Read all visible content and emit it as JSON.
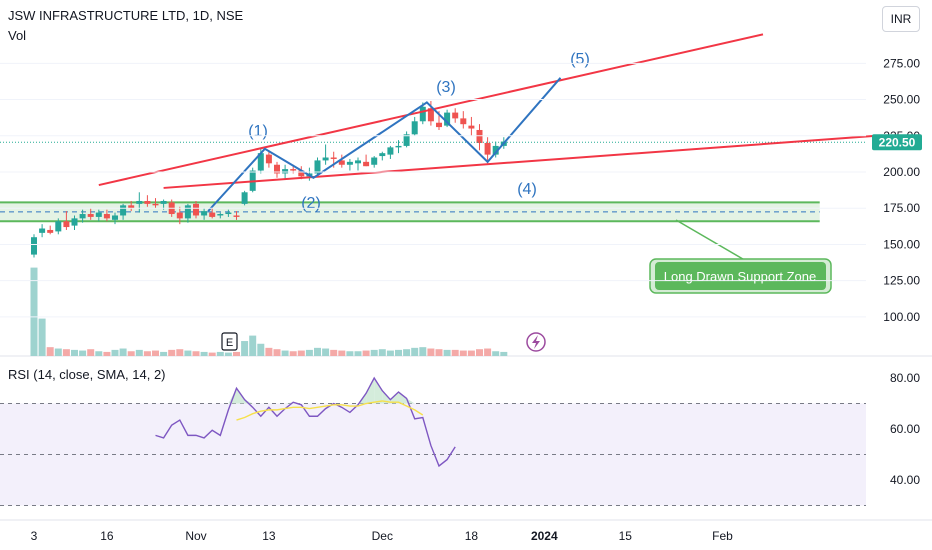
{
  "header": {
    "title": "JSW INFRASTRUCTURE LTD, 1D, NSE",
    "volume_label": "Vol",
    "currency_button": "INR"
  },
  "price": {
    "last": "220.50",
    "last_value": 220.5,
    "tag_color": "#22ab94"
  },
  "colors": {
    "up": "#26a69a",
    "down": "#ef5350",
    "vol_up": "#9ed3cf",
    "vol_down": "#f4a9a7",
    "trend": "#f23645",
    "wave": "#2f74c0",
    "zone": "#5cb85c",
    "rsi": "#7e57c2",
    "rsi_ma": "#f6e04b"
  },
  "chart_data": [
    {
      "type": "candlestick",
      "title": "JSW INFRASTRUCTURE LTD, 1D, NSE",
      "ylim": [
        80,
        300
      ],
      "y_ticks": [
        100,
        125,
        150,
        175,
        200,
        225,
        250,
        275
      ],
      "y_tick_labels": [
        "100.00",
        "125.00",
        "150.00",
        "175.00",
        "200.00",
        "225.00",
        "250.00",
        "275.00"
      ],
      "x_ticks": [
        {
          "index": 0,
          "label": "3"
        },
        {
          "index": 9,
          "label": "16"
        },
        {
          "index": 20,
          "label": "Nov"
        },
        {
          "index": 29,
          "label": "13"
        },
        {
          "index": 43,
          "label": "Dec"
        },
        {
          "index": 54,
          "label": "18"
        },
        {
          "index": 63,
          "label": "2024"
        },
        {
          "index": 73,
          "label": "15"
        },
        {
          "index": 85,
          "label": "Feb"
        }
      ],
      "candles": [
        [
          143,
          157,
          141,
          155
        ],
        [
          158,
          164,
          155,
          161
        ],
        [
          160,
          163,
          157,
          158
        ],
        [
          159,
          168,
          157,
          166
        ],
        [
          166,
          173,
          160,
          162
        ],
        [
          163,
          170,
          160,
          168
        ],
        [
          168,
          174,
          165,
          171
        ],
        [
          171,
          175,
          167,
          169
        ],
        [
          169,
          174,
          166,
          172
        ],
        [
          171,
          174,
          166,
          168
        ],
        [
          167,
          172,
          164,
          170
        ],
        [
          170,
          178,
          167,
          177
        ],
        [
          177,
          180,
          173,
          175
        ],
        [
          178,
          186,
          172,
          180
        ],
        [
          180,
          184,
          176,
          178
        ],
        [
          178,
          182,
          175,
          177
        ],
        [
          178,
          181,
          174,
          180
        ],
        [
          179,
          181,
          169,
          171
        ],
        [
          172,
          176,
          164,
          168
        ],
        [
          168,
          178,
          165,
          177
        ],
        [
          178,
          180,
          168,
          170
        ],
        [
          170,
          175,
          167,
          173
        ],
        [
          172,
          175,
          168,
          169
        ],
        [
          170,
          172,
          168,
          171
        ],
        [
          171,
          174,
          169,
          172
        ],
        [
          170,
          173,
          167,
          169
        ],
        [
          178,
          187,
          177,
          186
        ],
        [
          187,
          203,
          186,
          201
        ],
        [
          201,
          216,
          199,
          213
        ],
        [
          212,
          215,
          203,
          206
        ],
        [
          205,
          207,
          196,
          199
        ],
        [
          199,
          205,
          195,
          202
        ],
        [
          202,
          205,
          199,
          201
        ],
        [
          201,
          204,
          195,
          197
        ],
        [
          197,
          203,
          194,
          199
        ],
        [
          199,
          210,
          197,
          208
        ],
        [
          208,
          219,
          205,
          210
        ],
        [
          210,
          214,
          203,
          209
        ],
        [
          208,
          212,
          203,
          205
        ],
        [
          205,
          209,
          201,
          207
        ],
        [
          206,
          210,
          201,
          208
        ],
        [
          207,
          212,
          204,
          204
        ],
        [
          205,
          211,
          203,
          210
        ],
        [
          211,
          214,
          208,
          213
        ],
        [
          212,
          218,
          209,
          217
        ],
        [
          217,
          222,
          213,
          218
        ],
        [
          218,
          228,
          217,
          226
        ],
        [
          226,
          238,
          225,
          235
        ],
        [
          235,
          248,
          233,
          245
        ],
        [
          244,
          249,
          232,
          235
        ],
        [
          234,
          242,
          229,
          231
        ],
        [
          232,
          243,
          231,
          241
        ],
        [
          241,
          244,
          234,
          237
        ],
        [
          237,
          242,
          230,
          233
        ],
        [
          232,
          238,
          225,
          230
        ],
        [
          229,
          233,
          215,
          220
        ],
        [
          220,
          224,
          206,
          212
        ],
        [
          212,
          221,
          210,
          218
        ],
        [
          218,
          224,
          216,
          221
        ]
      ],
      "volumes": [
        130,
        55,
        13,
        11,
        10,
        9,
        8,
        10,
        7,
        6,
        9,
        11,
        7,
        9,
        7,
        8,
        6,
        9,
        10,
        8,
        7,
        6,
        5,
        6,
        5,
        6,
        22,
        30,
        18,
        12,
        10,
        8,
        7,
        8,
        9,
        12,
        11,
        9,
        8,
        7,
        7,
        8,
        9,
        10,
        8,
        9,
        10,
        12,
        13,
        11,
        10,
        9,
        9,
        8,
        8,
        10,
        11,
        7,
        6
      ]
    },
    {
      "type": "line",
      "title": "RSI (14, close, SMA, 14, 2)",
      "ylim": [
        28,
        88
      ],
      "y_ticks": [
        40,
        60,
        80
      ],
      "y_tick_labels": [
        "40.00",
        "60.00",
        "80.00"
      ],
      "bands": [
        30,
        50,
        70
      ],
      "start_index": 15,
      "series": [
        {
          "values": [
            57.5,
            56.5,
            61.5,
            63.5,
            57.5,
            57.5,
            56.5,
            59.5,
            57.5,
            67.5,
            76.0,
            71.5,
            68.5,
            65.0,
            68.5,
            65.0,
            68.0,
            70.5,
            69.5,
            65.0,
            65.0,
            68.0,
            70.0,
            68.5,
            66.5,
            69.5,
            74.0,
            80.0,
            75.0,
            71.5,
            74.5,
            72.0,
            64.0,
            64.5,
            53.5,
            45.5,
            48.0,
            53.0
          ]
        },
        {
          "start_index": 25,
          "values": [
            63.5,
            64.5,
            66.0,
            67.0,
            67.5,
            67.5,
            68.0,
            68.5,
            68.5,
            68.0,
            68.5,
            69.0,
            69.5,
            69.5,
            69.0,
            69.0,
            70.0,
            70.5,
            71.0,
            70.5,
            70.5,
            69.0,
            67.5,
            65.5
          ]
        }
      ]
    }
  ],
  "drawings": {
    "wave_labels": [
      "(1)",
      "(2)",
      "(3)",
      "(4)",
      "(5)"
    ],
    "waves": [
      {
        "index": 21.5,
        "price": 173
      },
      {
        "index": 28.5,
        "price": 216
      },
      {
        "index": 34.5,
        "price": 196
      },
      {
        "index": 48.5,
        "price": 248
      },
      {
        "index": 56.0,
        "price": 207
      },
      {
        "index": 65.0,
        "price": 265
      }
    ],
    "upper_channel": [
      {
        "index": 8,
        "price": 191
      },
      {
        "index": 90,
        "price": 295
      }
    ],
    "lower_channel": [
      {
        "index": 16,
        "price": 189
      },
      {
        "index": 104,
        "price": 225
      }
    ],
    "support_zone": {
      "top": 179,
      "bottom": 166,
      "mid": 172.5,
      "end_index": 97
    },
    "zone_label": "Long Drawn Support Zone"
  }
}
